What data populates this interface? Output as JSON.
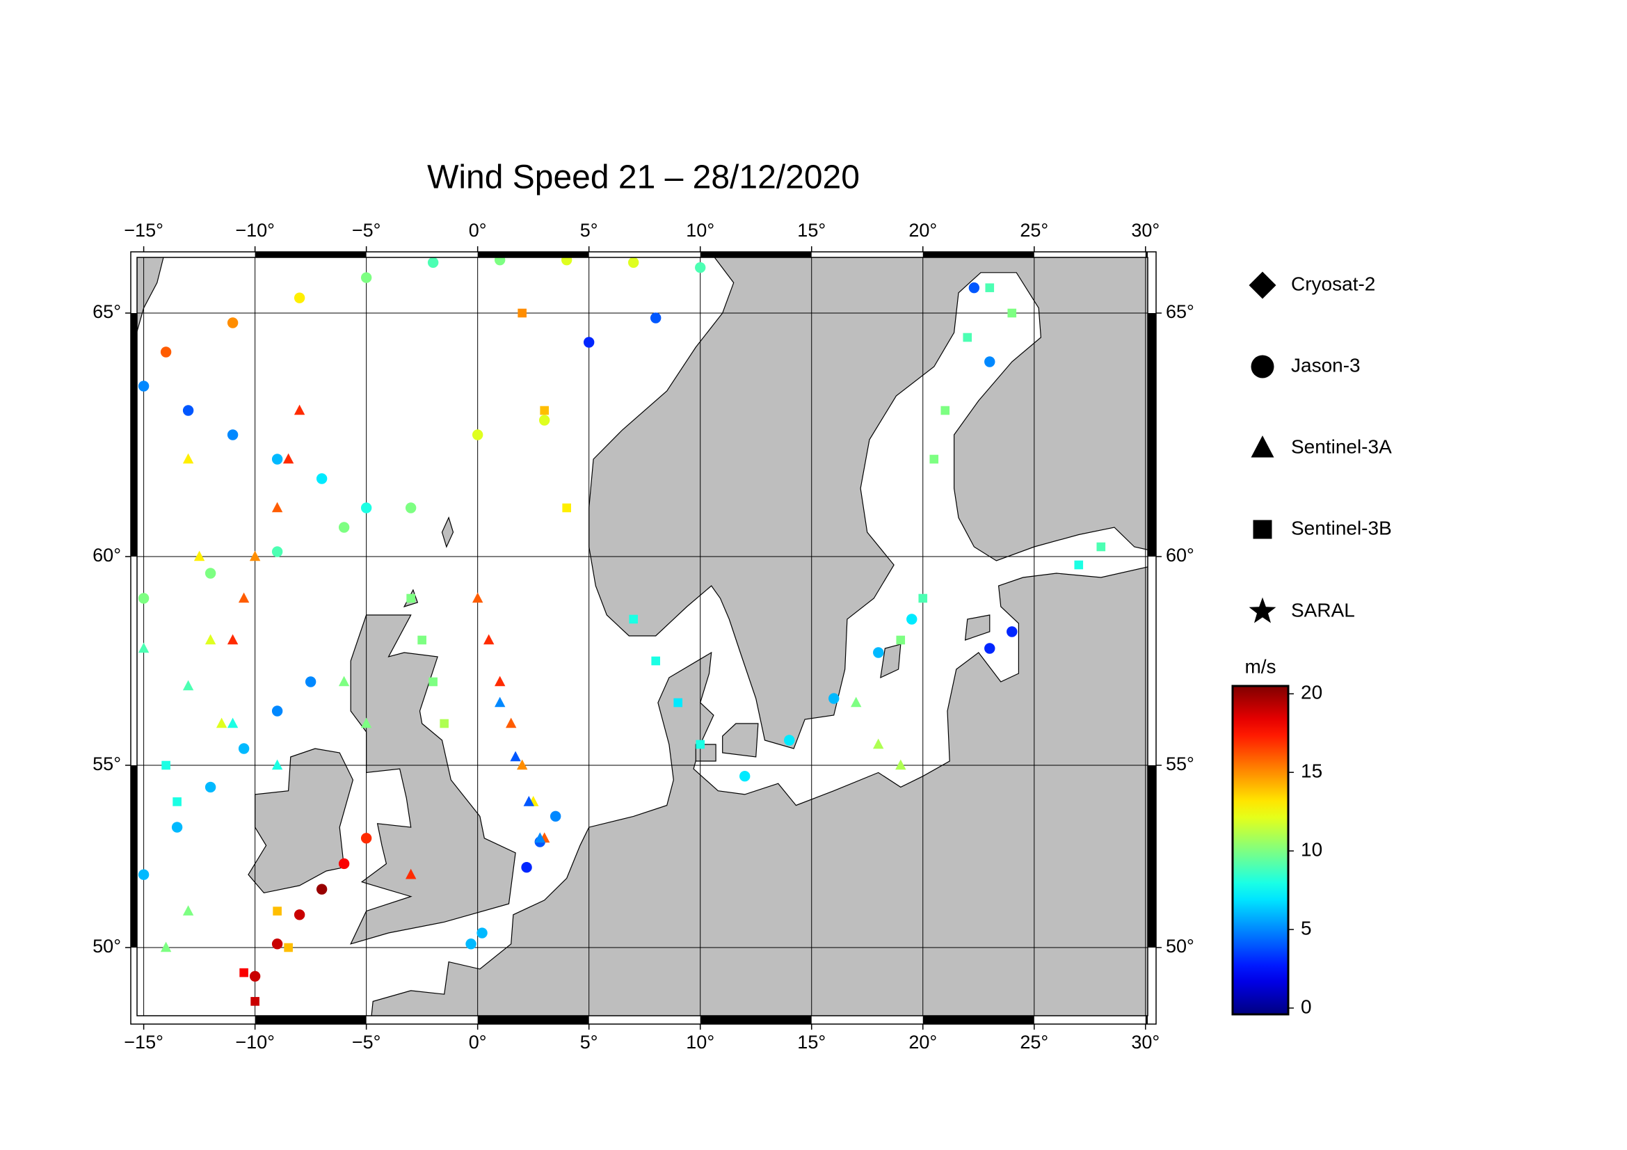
{
  "chart_data": {
    "type": "map",
    "title": "Wind Speed 21 – 28/12/2020",
    "xlim": [
      -15.3,
      30.1
    ],
    "xticks": [
      {
        "value": -15,
        "label": "−15°"
      },
      {
        "value": -10,
        "label": "−10°"
      },
      {
        "value": -5,
        "label": "−5°"
      },
      {
        "value": 0,
        "label": "0°"
      },
      {
        "value": 5,
        "label": "5°"
      },
      {
        "value": 10,
        "label": "10°"
      },
      {
        "value": 15,
        "label": "15°"
      },
      {
        "value": 20,
        "label": "20°"
      },
      {
        "value": 25,
        "label": "25°"
      },
      {
        "value": 30,
        "label": "30°"
      }
    ],
    "ylim": [
      48.1,
      66.1
    ],
    "yticks": [
      {
        "value": 50,
        "label": "50°"
      },
      {
        "value": 55,
        "label": "55°"
      },
      {
        "value": 60,
        "label": "60°"
      },
      {
        "value": 65,
        "label": "65°"
      }
    ],
    "grid": true,
    "series": [
      {
        "name": "Cryosat-2",
        "marker": "diamond"
      },
      {
        "name": "Jason-3",
        "marker": "circle",
        "lon": [
          -10,
          -9,
          -8,
          -7,
          -6,
          -5,
          -15,
          -13.5,
          -12,
          -10.5,
          -9,
          -7.5,
          -15,
          -13,
          -11,
          -9,
          -7,
          -5,
          -14,
          -11,
          -8,
          -5,
          -2,
          1,
          4,
          7,
          10,
          -15,
          -12,
          -9,
          -6,
          -3,
          0,
          3,
          3.5,
          2.8,
          2.2,
          -0.3,
          0.2,
          12,
          14,
          16,
          18,
          19.5,
          23,
          24,
          22.3,
          23,
          5,
          8
        ],
        "lat": [
          49.2,
          50.1,
          50.9,
          51.6,
          52.3,
          53,
          52,
          53.3,
          54.4,
          55.4,
          56.3,
          57,
          63.5,
          63,
          62.5,
          62,
          61.6,
          61,
          64.2,
          64.8,
          65.3,
          65.7,
          66,
          66.05,
          66.05,
          66,
          65.9,
          59,
          59.6,
          60.1,
          60.6,
          61,
          62.5,
          62.8,
          53.6,
          52.9,
          52.2,
          50.1,
          50.4,
          54.7,
          55.6,
          56.6,
          57.7,
          58.5,
          57.8,
          58.2,
          65.5,
          64,
          64.4,
          64.9
        ],
        "values": [
          19,
          19,
          19,
          20,
          18,
          17,
          6,
          6,
          6,
          6,
          5,
          5,
          5,
          4,
          5,
          6,
          7,
          8,
          16,
          15,
          13,
          10,
          9,
          10,
          12,
          12,
          9,
          10,
          10,
          9,
          10,
          10,
          12,
          12,
          5,
          4,
          3,
          6,
          6,
          7,
          7,
          6,
          6,
          7,
          3,
          3,
          4,
          5,
          3,
          4
        ]
      },
      {
        "name": "Sentinel-3A",
        "marker": "triangle",
        "lon": [
          0,
          0.5,
          1,
          1.5,
          2,
          2.5,
          3,
          1,
          1.7,
          2.3,
          2.8,
          -8,
          -8.5,
          -9,
          -10,
          -10.5,
          -11,
          -13,
          -12.5,
          -12,
          -11.5,
          -14,
          -13,
          -15,
          -13,
          -11,
          -9,
          17,
          18,
          19,
          -6,
          -5,
          -3
        ],
        "lat": [
          59,
          58,
          57,
          56,
          55,
          54,
          53,
          56.5,
          55.2,
          54,
          53,
          63,
          62,
          61,
          60,
          59,
          58,
          62,
          60,
          58,
          56,
          50,
          51,
          57.8,
          56.9,
          56,
          55,
          56.5,
          55.5,
          55,
          57,
          56,
          52
        ],
        "values": [
          16,
          17,
          17,
          16,
          15,
          13,
          16,
          5,
          4,
          4,
          5,
          17,
          17,
          16,
          15,
          16,
          17,
          13,
          13,
          12,
          12,
          10,
          10,
          9,
          9,
          8,
          8,
          10,
          11,
          11,
          10,
          10,
          17
        ]
      },
      {
        "name": "Sentinel-3B",
        "marker": "square",
        "lon": [
          7,
          8,
          9,
          10,
          -3,
          -2.5,
          -2,
          -1.5,
          -9,
          -8.5,
          -10,
          -10.5,
          23,
          24,
          22,
          21,
          20.5,
          27,
          28,
          20,
          19,
          -14,
          -13.5,
          2,
          3,
          4
        ],
        "lat": [
          58.5,
          57.5,
          56.5,
          55.5,
          59,
          58,
          57,
          56,
          51,
          50,
          48.5,
          49.3,
          65.5,
          65,
          64.5,
          63,
          62,
          59.8,
          60.2,
          59,
          58,
          55,
          54,
          65,
          63,
          61
        ],
        "values": [
          8,
          8,
          7,
          8,
          10,
          10,
          10,
          11,
          14,
          14,
          19,
          18,
          9,
          10,
          9,
          10,
          10,
          8,
          9,
          9,
          10,
          8,
          8,
          15,
          14,
          13
        ]
      },
      {
        "name": "SARAL",
        "marker": "star"
      }
    ],
    "colorbar": {
      "label": "m/s",
      "lim": [
        -0.4,
        20.5
      ],
      "ticks": [
        0,
        5,
        10,
        15,
        20
      ],
      "colormap": "jet"
    }
  }
}
